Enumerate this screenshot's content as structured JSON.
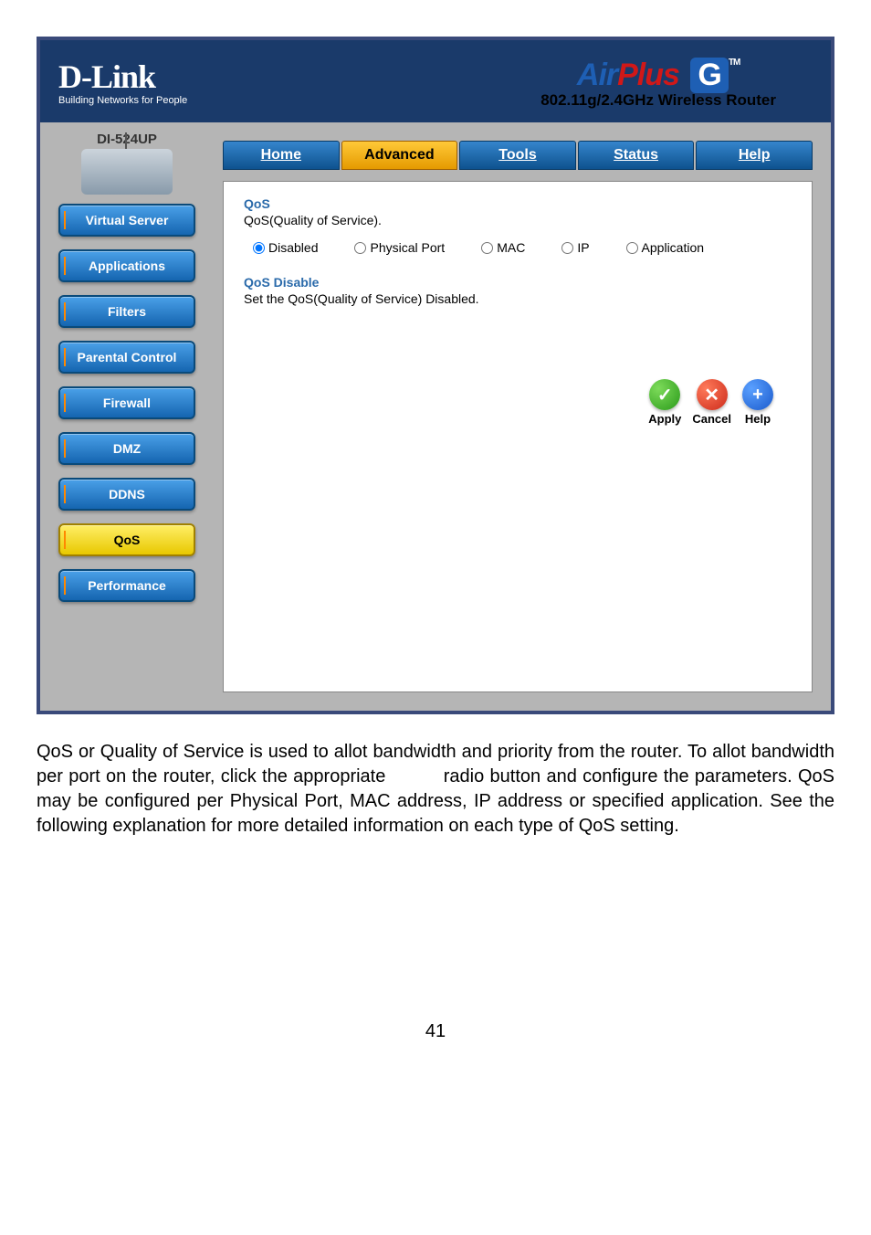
{
  "header": {
    "brand": "D-Link",
    "tagline": "Building Networks for People",
    "product_air": "Air",
    "product_plus": "Plus",
    "product_g": "G",
    "tm": "TM",
    "subheader": "802.11g/2.4GHz Wireless Router"
  },
  "sidebar": {
    "model": "DI-524UP",
    "items": [
      {
        "label": "Virtual Server"
      },
      {
        "label": "Applications"
      },
      {
        "label": "Filters"
      },
      {
        "label": "Parental Control"
      },
      {
        "label": "Firewall"
      },
      {
        "label": "DMZ"
      },
      {
        "label": "DDNS"
      },
      {
        "label": "QoS"
      },
      {
        "label": "Performance"
      }
    ],
    "active_index": 7
  },
  "tabs": {
    "items": [
      "Home",
      "Advanced",
      "Tools",
      "Status",
      "Help"
    ],
    "active_index": 1
  },
  "panel": {
    "title1": "QoS",
    "desc1": "QoS(Quality of Service).",
    "radios": [
      "Disabled",
      "Physical Port",
      "MAC",
      "IP",
      "Application"
    ],
    "radio_selected": 0,
    "title2": "QoS Disable",
    "desc2": "Set the QoS(Quality of Service) Disabled."
  },
  "actions": {
    "apply": "Apply",
    "cancel": "Cancel",
    "help": "Help"
  },
  "explain_text": "QoS or Quality of Service is used to allot bandwidth and priority from the router. To allot bandwidth per port on the router, click the appropriate          radio button and configure the parameters. QoS may be configured per Physical Port, MAC address, IP address or specified application. See the following explanation for more detailed information on each type of QoS setting.",
  "page_number": "41",
  "colors": {
    "frame_border": "#3a4a7a",
    "frame_bg": "#b5b5b5",
    "header_bg": "#1a3a6a",
    "accent_red": "#d01818",
    "accent_blue": "#1e5fb4",
    "nav_blue_top": "#4aa0e8",
    "nav_blue_bot": "#1565b0",
    "nav_yellow_top": "#ffee66",
    "nav_yellow_bot": "#e8c800",
    "section_title": "#2a6aaa"
  }
}
